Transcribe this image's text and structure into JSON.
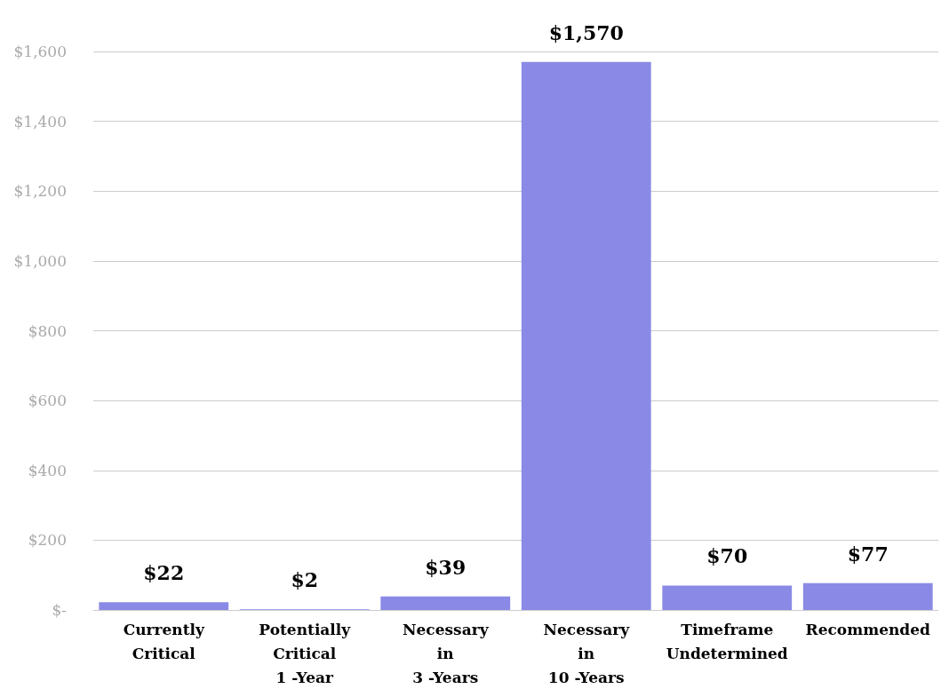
{
  "chart_data": {
    "type": "bar",
    "categories": [
      "Currently\nCritical",
      "Potentially\nCritical\n1 -Year",
      "Necessary\nin\n3 -Years",
      "Necessary\nin\n10 -Years",
      "Timeframe\nUndetermined",
      "Recommended"
    ],
    "values": [
      22,
      2,
      39,
      1570,
      70,
      77
    ],
    "value_labels": [
      "$22",
      "$2",
      "$39",
      "$1,570",
      "$70",
      "$77"
    ],
    "color": "#8a8ae6",
    "ylim": [
      0,
      1600
    ],
    "yticks": [
      {
        "value": 0,
        "label": "$-"
      },
      {
        "value": 200,
        "label": "$200"
      },
      {
        "value": 400,
        "label": "$400"
      },
      {
        "value": 600,
        "label": "$600"
      },
      {
        "value": 800,
        "label": "$800"
      },
      {
        "value": 1000,
        "label": "$1,000"
      },
      {
        "value": 1200,
        "label": "$1,200"
      },
      {
        "value": 1400,
        "label": "$1,400"
      },
      {
        "value": 1600,
        "label": "$1,600"
      }
    ],
    "grid": "y"
  }
}
